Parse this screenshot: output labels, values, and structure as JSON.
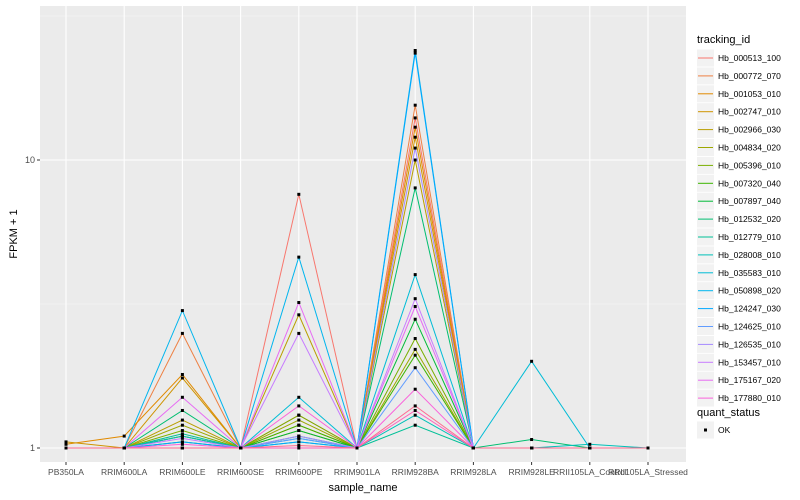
{
  "chart_data": {
    "type": "line",
    "title": "",
    "xlabel": "sample_name",
    "ylabel": "FPKM + 1",
    "y_scale": "log10",
    "ylim": [
      1,
      30
    ],
    "y_ticks": [
      {
        "value": 1,
        "label": "1"
      },
      {
        "value": 10,
        "label": "10"
      }
    ],
    "grid": true,
    "legend_position": "right",
    "categories": [
      "PB350LA",
      "RRIM600LA",
      "RRIM600LE",
      "RRIM600SE",
      "RRIM600PE",
      "RRIM901LA",
      "RRIM928BA",
      "RRIM928LA",
      "RRIM928LE",
      "RRII105LA_Control",
      "RRII105LA_Stressed"
    ],
    "legend_title": "tracking_id",
    "series": [
      {
        "name": "Hb_000513_100",
        "color": "#F8766D",
        "values": [
          1.0,
          1.0,
          1.1,
          1.0,
          7.6,
          1.0,
          14.0,
          1.0,
          1.0,
          1.0,
          1.0
        ]
      },
      {
        "name": "Hb_000772_070",
        "color": "#EE8043",
        "values": [
          1.0,
          1.0,
          2.5,
          1.0,
          1.3,
          1.0,
          15.5,
          1.0,
          1.0,
          1.0,
          1.0
        ]
      },
      {
        "name": "Hb_001053_010",
        "color": "#E18A00",
        "values": [
          1.03,
          1.1,
          1.8,
          1.0,
          1.2,
          1.0,
          13.0,
          1.0,
          1.0,
          1.0,
          1.0
        ]
      },
      {
        "name": "Hb_002747_010",
        "color": "#CF9400",
        "values": [
          1.05,
          1.0,
          1.75,
          1.0,
          1.15,
          1.0,
          12.0,
          1.0,
          1.0,
          1.0,
          1.0
        ]
      },
      {
        "name": "Hb_002966_030",
        "color": "#B99E00",
        "values": [
          1.0,
          1.0,
          1.25,
          1.0,
          2.9,
          1.0,
          10.0,
          1.0,
          1.0,
          1.0,
          1.0
        ]
      },
      {
        "name": "Hb_004834_020",
        "color": "#9DA700",
        "values": [
          1.0,
          1.0,
          1.2,
          1.0,
          1.25,
          1.0,
          2.2,
          1.0,
          1.0,
          1.0,
          1.0
        ]
      },
      {
        "name": "Hb_005396_010",
        "color": "#79AF00",
        "values": [
          1.0,
          1.0,
          1.15,
          1.0,
          1.3,
          1.0,
          2.4,
          1.0,
          1.0,
          1.0,
          1.0
        ]
      },
      {
        "name": "Hb_007320_040",
        "color": "#3CB500",
        "values": [
          1.0,
          1.0,
          1.1,
          1.0,
          1.2,
          1.0,
          2.1,
          1.0,
          1.0,
          1.0,
          1.0
        ]
      },
      {
        "name": "Hb_007897_040",
        "color": "#00BA38",
        "values": [
          1.0,
          1.0,
          1.05,
          1.0,
          1.15,
          1.0,
          2.8,
          1.0,
          1.0,
          1.0,
          1.0
        ]
      },
      {
        "name": "Hb_012532_020",
        "color": "#00BE70",
        "values": [
          1.0,
          1.0,
          1.35,
          1.0,
          1.1,
          1.0,
          8.0,
          1.0,
          1.07,
          1.0,
          1.0
        ]
      },
      {
        "name": "Hb_012779_010",
        "color": "#00C097",
        "values": [
          1.0,
          1.0,
          1.12,
          1.0,
          1.05,
          1.0,
          1.2,
          1.0,
          1.0,
          1.0,
          1.0
        ]
      },
      {
        "name": "Hb_028008_010",
        "color": "#00C0B8",
        "values": [
          1.0,
          1.0,
          1.1,
          1.0,
          1.08,
          1.0,
          1.3,
          1.0,
          1.0,
          1.03,
          1.0
        ]
      },
      {
        "name": "Hb_035583_010",
        "color": "#00BCD6",
        "values": [
          1.0,
          1.0,
          1.0,
          1.0,
          1.5,
          1.0,
          4.0,
          1.0,
          2.0,
          1.0,
          1.0
        ]
      },
      {
        "name": "Hb_050898_020",
        "color": "#00B5EE",
        "values": [
          1.0,
          1.0,
          3.0,
          1.0,
          4.6,
          1.0,
          24.0,
          1.0,
          1.0,
          1.0,
          1.0
        ]
      },
      {
        "name": "Hb_124247_030",
        "color": "#00A9FF",
        "values": [
          1.0,
          1.0,
          1.05,
          1.0,
          1.05,
          1.0,
          23.5,
          1.0,
          1.0,
          1.0,
          1.0
        ]
      },
      {
        "name": "Hb_124625_010",
        "color": "#619CFF",
        "values": [
          1.0,
          1.0,
          1.0,
          1.0,
          1.08,
          1.0,
          1.9,
          1.0,
          1.0,
          1.0,
          1.0
        ]
      },
      {
        "name": "Hb_126535_010",
        "color": "#A58AFF",
        "values": [
          1.0,
          1.0,
          1.0,
          1.0,
          1.1,
          1.0,
          11.0,
          1.0,
          1.0,
          1.0,
          1.0
        ]
      },
      {
        "name": "Hb_153457_010",
        "color": "#C77CFF",
        "values": [
          1.0,
          1.0,
          1.08,
          1.0,
          2.5,
          1.0,
          3.3,
          1.0,
          1.0,
          1.0,
          1.0
        ]
      },
      {
        "name": "Hb_175167_020",
        "color": "#E76BF3",
        "values": [
          1.0,
          1.0,
          1.5,
          1.0,
          3.2,
          1.0,
          3.1,
          1.0,
          1.0,
          1.0,
          1.0
        ]
      },
      {
        "name": "Hb_177880_010",
        "color": "#FA62DB",
        "values": [
          1.0,
          1.0,
          1.03,
          1.0,
          1.4,
          1.0,
          1.6,
          1.0,
          1.0,
          1.0,
          1.0
        ]
      },
      {
        "name": "",
        "color": "#FF62BC",
        "values": [
          1.0,
          1.0,
          1.0,
          1.0,
          1.0,
          1.0,
          1.35,
          1.0,
          1.0,
          1.0,
          1.0
        ]
      },
      {
        "name": "",
        "color": "#FF6C91",
        "values": [
          1.0,
          1.0,
          1.0,
          1.0,
          1.02,
          1.0,
          1.4,
          1.0,
          1.0,
          1.0,
          1.0
        ]
      }
    ],
    "shape_legend": {
      "title": "quant_status",
      "entries": [
        {
          "label": "OK"
        }
      ]
    }
  }
}
